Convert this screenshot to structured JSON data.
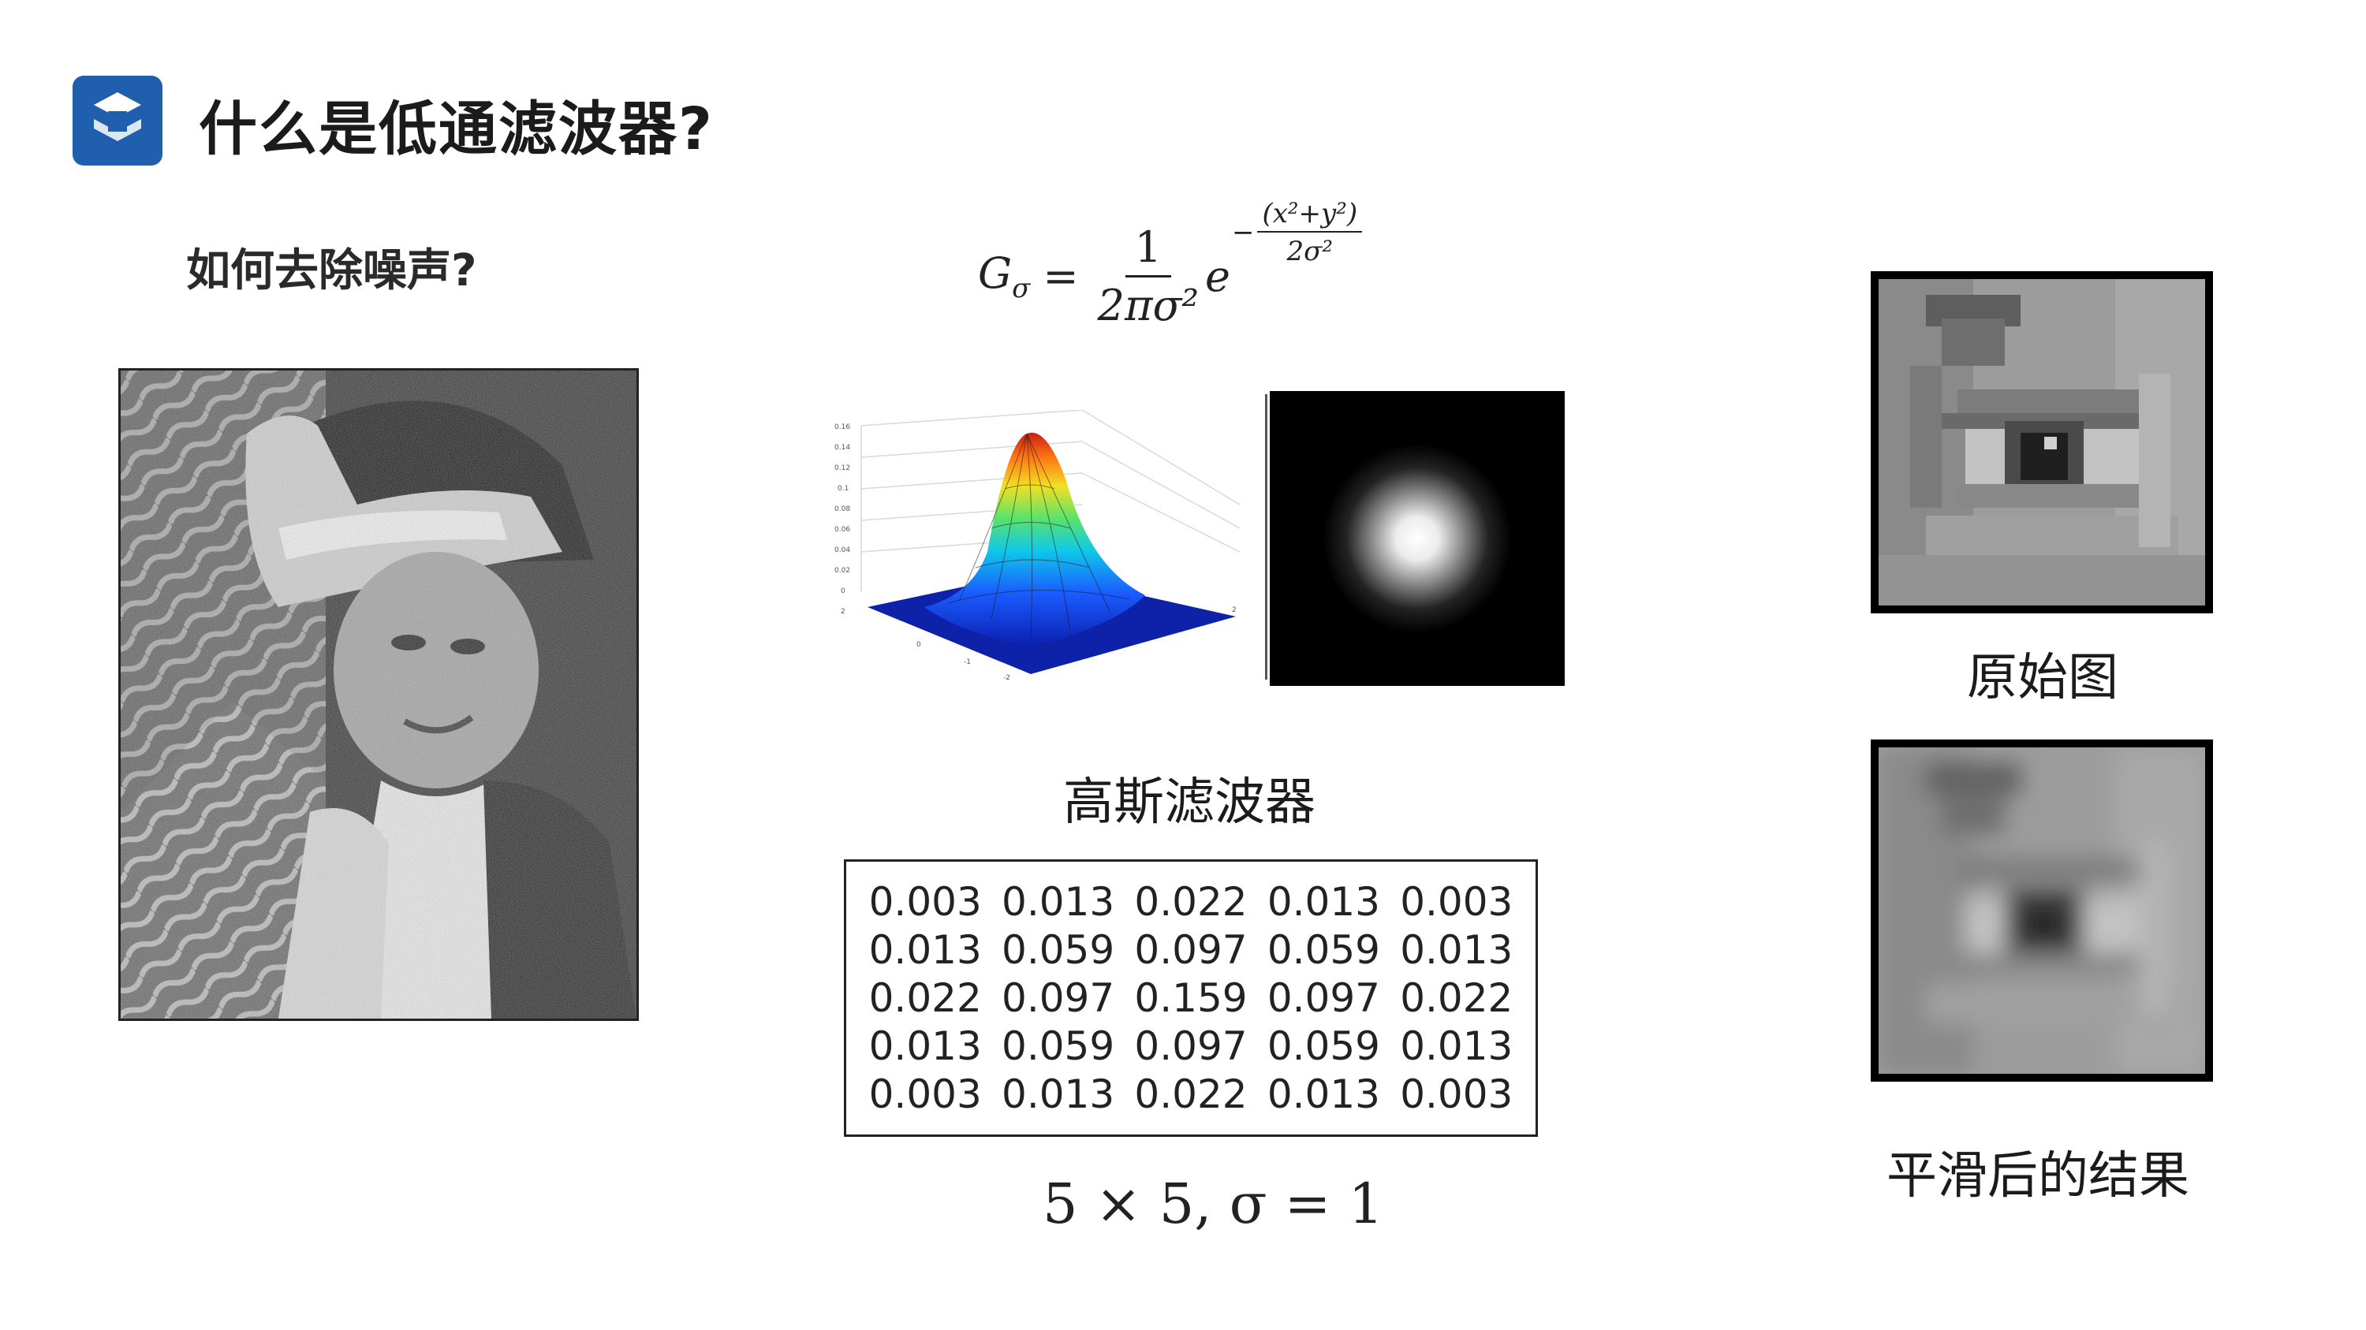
{
  "header": {
    "logo_icon": "s-logo-icon",
    "logo_color": "#1f5fae",
    "title": "什么是低通滤波器?"
  },
  "left": {
    "question": "如何去除噪声?",
    "image_icon": "noisy-portrait-image"
  },
  "formula": {
    "lhs": "G",
    "lhs_sub": "σ",
    "equals": "=",
    "frac_num": "1",
    "frac_den": "2πσ²",
    "base": "e",
    "exp_minus": "−",
    "exp_num": "(x²+y²)",
    "exp_den": "2σ²"
  },
  "center": {
    "surface_icon": "gaussian-3d-surface-plot",
    "kernel_icon": "gaussian-kernel-image",
    "kernel_label": "高斯滤波器",
    "matrix": [
      [
        "0.003",
        "0.013",
        "0.022",
        "0.013",
        "0.003"
      ],
      [
        "0.013",
        "0.059",
        "0.097",
        "0.059",
        "0.013"
      ],
      [
        "0.022",
        "0.097",
        "0.159",
        "0.097",
        "0.022"
      ],
      [
        "0.013",
        "0.059",
        "0.097",
        "0.059",
        "0.013"
      ],
      [
        "0.003",
        "0.013",
        "0.022",
        "0.013",
        "0.003"
      ]
    ],
    "note": "5 × 5, σ = 1"
  },
  "right": {
    "original_icon": "eye-closeup-image",
    "original_caption": "原始图",
    "smoothed_icon": "eye-blurred-image",
    "smoothed_caption": "平滑后的结果"
  }
}
